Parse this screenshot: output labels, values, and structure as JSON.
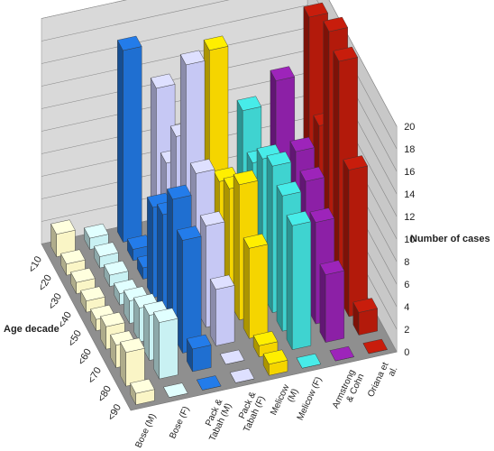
{
  "chart_data": {
    "type": "bar3d",
    "y_label": "Number of cases",
    "x_label": "Age decade",
    "categories": [
      "<10",
      "<20",
      "<30",
      "<40",
      "<50",
      "<60",
      "<70",
      "<80",
      "<90"
    ],
    "ylim": [
      0,
      20
    ],
    "yticks": [
      0,
      2,
      4,
      6,
      8,
      10,
      12,
      14,
      16,
      18,
      20
    ],
    "grid": true,
    "series": [
      {
        "name": "Bose (M)",
        "color": "#faf5c6",
        "values": [
          2,
          1,
          1,
          1,
          1,
          2,
          2,
          3,
          1
        ]
      },
      {
        "name": "Bose (F)",
        "color": "#c9f1f3",
        "values": [
          1,
          1,
          1,
          1,
          2,
          3,
          4,
          5,
          0
        ]
      },
      {
        "name": "Pack & Tabah (M)",
        "color": "#1f6fd1",
        "values": [
          17,
          1,
          1,
          8,
          9,
          12,
          10,
          2,
          0
        ]
      },
      {
        "name": "Pack & Tabah (F)",
        "color": "#c6c8f4",
        "values": [
          13,
          8,
          12,
          20,
          12,
          9,
          5,
          0,
          0
        ]
      },
      {
        "name": "Melicow (M)",
        "color": "#f5d500",
        "values": [
          0,
          0,
          19,
          9,
          10,
          12,
          8,
          1,
          1
        ]
      },
      {
        "name": "Melicow (F)",
        "color": "#3fd3d0",
        "values": [
          0,
          0,
          13,
          10,
          12,
          13,
          12,
          11,
          0
        ]
      },
      {
        "name": "Armstrong & Cohn",
        "color": "#8c20a6",
        "values": [
          0,
          0,
          15,
          0,
          12,
          11,
          9,
          6,
          0
        ]
      },
      {
        "name": "Oriana et al.",
        "color": "#b31a0b",
        "values": [
          0,
          0,
          20,
          12,
          22,
          21,
          13,
          2,
          0
        ]
      }
    ]
  }
}
